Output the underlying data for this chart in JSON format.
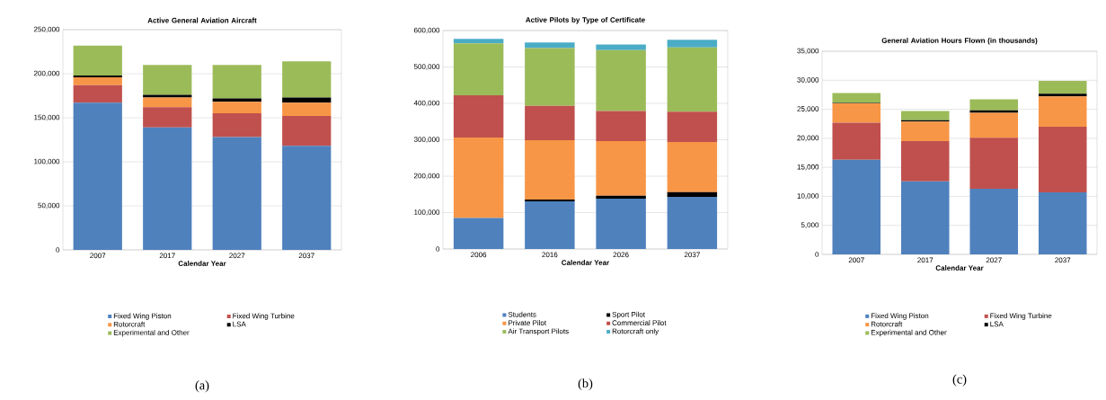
{
  "chart_data": [
    {
      "type": "bar",
      "title": "Active General Aviation Aircraft",
      "xlabel": "Calendar Year",
      "categories": [
        "2007",
        "2017",
        "2027",
        "2037"
      ],
      "stacked": true,
      "grid": "y",
      "legend": "bottom",
      "ylim": [
        0,
        250000
      ],
      "yticks": [
        0,
        {
          "value": 50000,
          "label": "50,000"
        },
        {
          "value": 100000,
          "label": "100,000"
        },
        {
          "value": 150000,
          "label": "150,000"
        },
        {
          "value": 200000,
          "label": "200,000"
        },
        {
          "value": 250000,
          "label": "250,000"
        }
      ],
      "series": [
        {
          "name": "Fixed Wing Piston",
          "color": "#4f81bd",
          "values": [
            167000,
            139000,
            128000,
            118000
          ]
        },
        {
          "name": "Fixed Wing Turbine",
          "color": "#c0504d",
          "values": [
            20000,
            23000,
            27000,
            34000
          ]
        },
        {
          "name": "Rotorcraft",
          "color": "#f79646",
          "values": [
            9000,
            11000,
            13000,
            15000
          ]
        },
        {
          "name": "LSA",
          "color": "#000000",
          "values": [
            2000,
            3000,
            4000,
            6000
          ]
        },
        {
          "name": "Experimental and Other",
          "color": "#9bbb59",
          "values": [
            34000,
            34000,
            38000,
            41000
          ]
        }
      ],
      "annotations": [
        "(a)"
      ]
    },
    {
      "type": "bar",
      "title": "Active Pilots by Type of Certificate",
      "xlabel": "Calendar Year",
      "categories": [
        "2006",
        "2016",
        "2026",
        "2037"
      ],
      "stacked": true,
      "grid": "y",
      "legend": "bottom",
      "ylim": [
        0,
        600000
      ],
      "yticks": [
        0,
        {
          "value": 100000,
          "label": "100,000"
        },
        {
          "value": 200000,
          "label": "200,000"
        },
        {
          "value": 300000,
          "label": "300,000"
        },
        {
          "value": 400000,
          "label": "400,000"
        },
        {
          "value": 500000,
          "label": "500,000"
        },
        {
          "value": 600000,
          "label": "600,000"
        }
      ],
      "series": [
        {
          "name": "Students",
          "color": "#4f81bd",
          "values": [
            85000,
            131000,
            138000,
            143000
          ]
        },
        {
          "name": "Sport Pilot",
          "color": "#000000",
          "values": [
            null,
            5000,
            8000,
            13000
          ]
        },
        {
          "name": "Private Pilot",
          "color": "#f79646",
          "values": [
            221000,
            163000,
            150000,
            138000
          ]
        },
        {
          "name": "Commercial Pilot",
          "color": "#c0504d",
          "values": [
            116000,
            94000,
            83000,
            83000
          ]
        },
        {
          "name": "Air Transport Pilots",
          "color": "#9bbb59",
          "values": [
            143000,
            159000,
            167000,
            177000
          ]
        },
        {
          "name": "Rotorcraft only",
          "color": "#4bacc6",
          "values": [
            12000,
            15000,
            16000,
            21000
          ]
        }
      ],
      "annotations": [
        "(b)"
      ]
    },
    {
      "type": "bar",
      "title": "General Aviation Hours Flown (in thousands)",
      "xlabel": "Calendar Year",
      "categories": [
        "2007",
        "2017",
        "2027",
        "2037"
      ],
      "stacked": true,
      "grid": "y",
      "legend": "bottom",
      "ylim": [
        0,
        35000
      ],
      "yticks": [
        0,
        {
          "value": 5000,
          "label": "5,000"
        },
        {
          "value": 10000,
          "label": "10,000"
        },
        {
          "value": 15000,
          "label": "15,000"
        },
        {
          "value": 20000,
          "label": "20,000"
        },
        {
          "value": 25000,
          "label": "25,000"
        },
        {
          "value": 30000,
          "label": "30,000"
        },
        {
          "value": 35000,
          "label": "35,000"
        }
      ],
      "series": [
        {
          "name": "Fixed Wing Piston",
          "color": "#4f81bd",
          "values": [
            16300,
            12600,
            11300,
            10700
          ]
        },
        {
          "name": "Fixed Wing Turbine",
          "color": "#c0504d",
          "values": [
            6400,
            6900,
            8800,
            11300
          ]
        },
        {
          "name": "Rotorcraft",
          "color": "#f79646",
          "values": [
            3300,
            3400,
            4300,
            5200
          ]
        },
        {
          "name": "LSA",
          "color": "#000000",
          "values": [
            100,
            200,
            400,
            500
          ]
        },
        {
          "name": "Experimental and Other",
          "color": "#9bbb59",
          "values": [
            1700,
            1600,
            1900,
            2200
          ]
        }
      ],
      "annotations": [
        "(c)"
      ]
    }
  ]
}
